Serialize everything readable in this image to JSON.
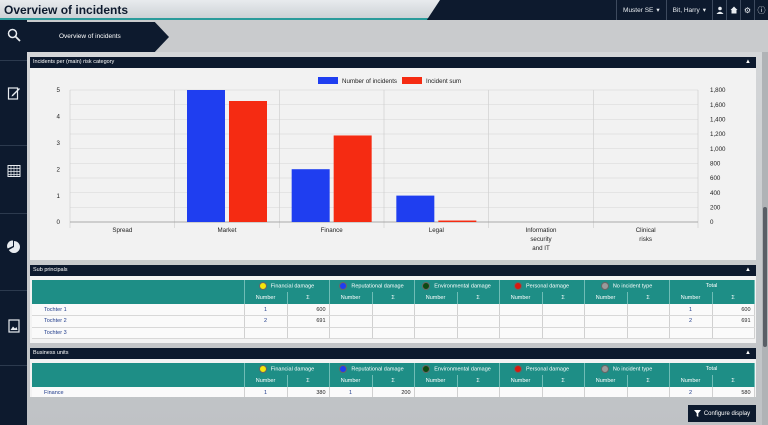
{
  "header": {
    "title": "Overview of incidents",
    "org_selector": "Muster SE",
    "user_selector": "Bit, Harry",
    "icons": [
      "user-icon",
      "home-icon",
      "gear-icon",
      "info-icon"
    ]
  },
  "breadcrumb": {
    "label": "Overview of incidents"
  },
  "sidebar": {
    "icons": [
      "search-icon",
      "edit-document-icon",
      "calendar-grid-icon",
      "pie-chart-icon",
      "report-image-icon"
    ]
  },
  "chart_panel": {
    "title": "Incidents per (main) risk category",
    "chart_data": {
      "type": "bar",
      "categories": [
        "Spread",
        "Market",
        "Finance",
        "Legal",
        "Information security and IT",
        "Clinical risks"
      ],
      "category_lines": [
        [
          "Spread"
        ],
        [
          "Market"
        ],
        [
          "Finance"
        ],
        [
          "Legal"
        ],
        [
          "Information",
          "security",
          "and IT"
        ],
        [
          "Clinical",
          "risks"
        ]
      ],
      "series": [
        {
          "name": "Number of incidents",
          "axis": "left",
          "color": "#1f3ef0",
          "values": [
            0,
            5,
            2,
            1,
            0,
            0
          ]
        },
        {
          "name": "Incident sum",
          "axis": "right",
          "color": "#f52b12",
          "values": [
            0,
            1650,
            1180,
            20,
            0,
            0
          ]
        }
      ],
      "ylim_left": [
        0,
        5
      ],
      "ylim_right": [
        0,
        1800
      ],
      "left_ticks": [
        "0",
        "1",
        "2",
        "3",
        "4",
        "5"
      ],
      "right_ticks": [
        "0",
        "200",
        "400",
        "600",
        "800",
        "1,000",
        "1,200",
        "1,400",
        "1,600",
        "1,800"
      ],
      "legend_position": "top-center",
      "grid": true
    }
  },
  "sub_principals": {
    "title": "Sub principals",
    "groups": [
      {
        "label": "Financial damage",
        "color": "#f5e60a"
      },
      {
        "label": "Reputational damage",
        "color": "#1f3ef0"
      },
      {
        "label": "Environmental damage",
        "color": "#0d4a12"
      },
      {
        "label": "Personal damage",
        "color": "#d81a10"
      },
      {
        "label": "No incident type",
        "color": "#9a9a9a"
      },
      {
        "label": "Total",
        "color": ""
      }
    ],
    "sub_headers": [
      "Number",
      "Σ"
    ],
    "rows": [
      {
        "name": "Tochter 1",
        "cells": [
          "1",
          "600",
          "",
          "",
          "",
          "",
          "",
          "",
          "",
          "",
          "1",
          "600"
        ]
      },
      {
        "name": "Tochter 2",
        "cells": [
          "2",
          "691",
          "",
          "",
          "",
          "",
          "",
          "",
          "",
          "",
          "2",
          "691"
        ]
      },
      {
        "name": "Tochter 3",
        "cells": [
          "",
          "",
          "",
          "",
          "",
          "",
          "",
          "",
          "",
          "",
          "",
          ""
        ]
      }
    ]
  },
  "business_units": {
    "title": "Business units",
    "groups": [
      {
        "label": "Financial damage",
        "color": "#f5e60a"
      },
      {
        "label": "Reputational damage",
        "color": "#1f3ef0"
      },
      {
        "label": "Environmental damage",
        "color": "#0d4a12"
      },
      {
        "label": "Personal damage",
        "color": "#d81a10"
      },
      {
        "label": "No incident type",
        "color": "#9a9a9a"
      },
      {
        "label": "Total",
        "color": ""
      }
    ],
    "sub_headers": [
      "Number",
      "Σ"
    ],
    "rows": [
      {
        "name": "Finance",
        "cells": [
          "1",
          "380",
          "1",
          "200",
          "",
          "",
          "",
          "",
          "",
          "",
          "2",
          "580"
        ]
      }
    ]
  },
  "configure_button": {
    "label": "Configure display"
  }
}
